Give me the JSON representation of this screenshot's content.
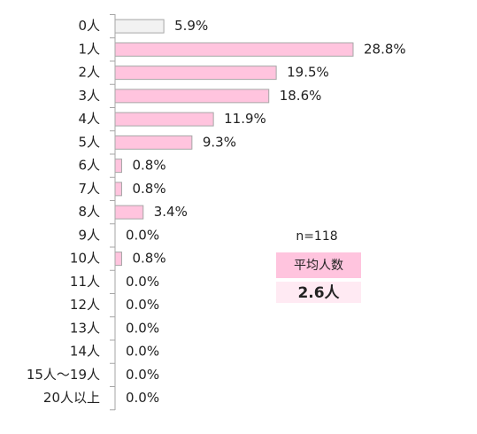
{
  "chart_data": {
    "type": "bar",
    "orientation": "horizontal",
    "categories": [
      "0人",
      "1人",
      "2人",
      "3人",
      "4人",
      "5人",
      "6人",
      "7人",
      "8人",
      "9人",
      "10人",
      "11人",
      "12人",
      "13人",
      "14人",
      "15人～19人",
      "20人以上"
    ],
    "values": [
      5.9,
      28.8,
      19.5,
      18.6,
      11.9,
      9.3,
      0.8,
      0.8,
      3.4,
      0.0,
      0.8,
      0.0,
      0.0,
      0.0,
      0.0,
      0.0,
      0.0
    ],
    "value_labels": [
      "5.9%",
      "28.8%",
      "19.5%",
      "18.6%",
      "11.9%",
      "9.3%",
      "0.8%",
      "0.8%",
      "3.4%",
      "0.0%",
      "0.8%",
      "0.0%",
      "0.0%",
      "0.0%",
      "0.0%",
      "0.0%",
      "0.0%"
    ],
    "colors": [
      "#f2f2f2",
      "#ffc4de",
      "#ffc4de",
      "#ffc4de",
      "#ffc4de",
      "#ffc4de",
      "#ffc4de",
      "#ffc4de",
      "#ffc4de",
      "#ffc4de",
      "#ffc4de",
      "#ffc4de",
      "#ffc4de",
      "#ffc4de",
      "#ffc4de",
      "#ffc4de",
      "#ffc4de"
    ],
    "annotations": [
      "n=118",
      "平均人数",
      "2.6人"
    ]
  }
}
